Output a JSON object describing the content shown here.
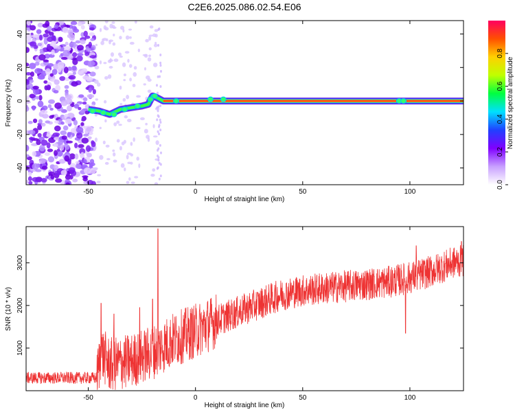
{
  "title": "C2E6.2025.086.02.54.E06",
  "chart_data": [
    {
      "type": "heatmap",
      "xlabel": "Height of straight line (km)",
      "ylabel": "Frequency (Hz)",
      "xlim": [
        -79,
        125
      ],
      "ylim": [
        -50,
        48
      ],
      "xticks": [
        -50,
        0,
        50,
        100
      ],
      "yticks": [
        -40,
        -20,
        0,
        20,
        40
      ],
      "colorbar": {
        "label": "Normalized spectral amplitude",
        "range": [
          0,
          1
        ],
        "ticks": [
          0.0,
          0.2,
          0.4,
          0.6,
          0.8
        ],
        "tick_labels": [
          "0.0",
          "0.2",
          "0.4",
          "0.6",
          "0.8"
        ],
        "colormap": [
          "#ffffff",
          "#c8a0ff",
          "#8000ff",
          "#2040ff",
          "#00e0ff",
          "#00ff40",
          "#c0ff00",
          "#ffd000",
          "#ff5000",
          "#ff0060"
        ]
      },
      "peak_track": [
        {
          "x": -50,
          "y": -5
        },
        {
          "x": -45,
          "y": -6
        },
        {
          "x": -40,
          "y": -8
        },
        {
          "x": -35,
          "y": -5
        },
        {
          "x": -30,
          "y": -4
        },
        {
          "x": -25,
          "y": -3
        },
        {
          "x": -22,
          "y": -2
        },
        {
          "x": -20,
          "y": 3
        },
        {
          "x": -18,
          "y": 2
        },
        {
          "x": -15,
          "y": 0
        },
        {
          "x": 0,
          "y": 0
        },
        {
          "x": 50,
          "y": 0
        },
        {
          "x": 100,
          "y": 0
        },
        {
          "x": 125,
          "y": 0
        }
      ],
      "noise_region": {
        "x_from": -79,
        "x_to": -47
      }
    },
    {
      "type": "line",
      "xlabel": "Height of straight line (km)",
      "ylabel": "SNR (10 * v/v)",
      "xlim": [
        -79,
        125
      ],
      "ylim": [
        0,
        3850
      ],
      "xticks": [
        -50,
        0,
        50,
        100
      ],
      "yticks": [
        1000,
        2000,
        3000
      ],
      "color": "#ee3333",
      "trend": [
        {
          "x": -79,
          "y": 300
        },
        {
          "x": -46,
          "y": 300
        },
        {
          "x": -44,
          "y": 900
        },
        {
          "x": -40,
          "y": 600
        },
        {
          "x": -30,
          "y": 700
        },
        {
          "x": -20,
          "y": 900
        },
        {
          "x": -10,
          "y": 1200
        },
        {
          "x": 0,
          "y": 1400
        },
        {
          "x": 10,
          "y": 1650
        },
        {
          "x": 20,
          "y": 1850
        },
        {
          "x": 30,
          "y": 2050
        },
        {
          "x": 40,
          "y": 2250
        },
        {
          "x": 50,
          "y": 2350
        },
        {
          "x": 60,
          "y": 2400
        },
        {
          "x": 70,
          "y": 2450
        },
        {
          "x": 80,
          "y": 2500
        },
        {
          "x": 90,
          "y": 2550
        },
        {
          "x": 100,
          "y": 2650
        },
        {
          "x": 110,
          "y": 2800
        },
        {
          "x": 120,
          "y": 3000
        },
        {
          "x": 125,
          "y": 3050
        }
      ],
      "spikes": [
        {
          "x": -44,
          "y": 2050
        },
        {
          "x": -38,
          "y": 1800
        },
        {
          "x": -26,
          "y": 1950
        },
        {
          "x": -20,
          "y": 2150
        },
        {
          "x": -17.5,
          "y": 3800
        },
        {
          "x": 98,
          "y": 1350
        },
        {
          "x": 103,
          "y": 3400
        },
        {
          "x": 124,
          "y": 3500
        }
      ]
    }
  ]
}
